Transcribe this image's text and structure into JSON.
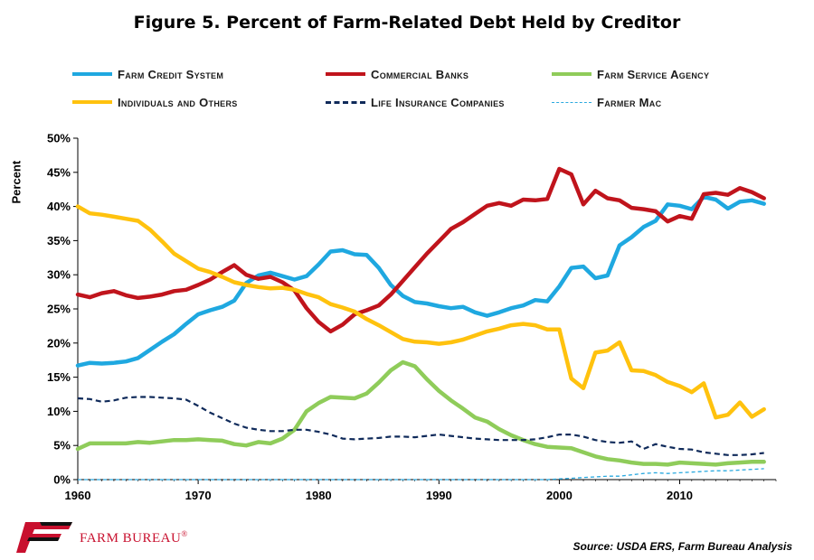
{
  "title": "Figure 5. Percent of Farm-Related Debt Held by Creditor",
  "source": "Source: USDA ERS, Farm Bureau Analysis",
  "brand": {
    "name": "FARM BUREAU",
    "mark": "FB",
    "registered": "®"
  },
  "chart_data": {
    "type": "line",
    "xlim": [
      1960,
      2018
    ],
    "ylim": [
      0,
      50
    ],
    "ylabel": "Percent",
    "xticks": [
      1960,
      1970,
      1980,
      1990,
      2000,
      2010
    ],
    "yticks": [
      "0%",
      "5%",
      "10%",
      "15%",
      "20%",
      "25%",
      "30%",
      "35%",
      "40%",
      "45%",
      "50%"
    ],
    "grid": false,
    "legend_position": "top",
    "x": [
      1960,
      1961,
      1962,
      1963,
      1964,
      1965,
      1966,
      1967,
      1968,
      1969,
      1970,
      1971,
      1972,
      1973,
      1974,
      1975,
      1976,
      1977,
      1978,
      1979,
      1980,
      1981,
      1982,
      1983,
      1984,
      1985,
      1986,
      1987,
      1988,
      1989,
      1990,
      1991,
      1992,
      1993,
      1994,
      1995,
      1996,
      1997,
      1998,
      1999,
      2000,
      2001,
      2002,
      2003,
      2004,
      2005,
      2006,
      2007,
      2008,
      2009,
      2010,
      2011,
      2012,
      2013,
      2014,
      2015,
      2016,
      2017
    ],
    "series": [
      {
        "name": "Farm Credit System",
        "color": "#1fa8e0",
        "style": "solid",
        "values": [
          16.7,
          17.1,
          17.0,
          17.1,
          17.3,
          17.8,
          19.0,
          20.2,
          21.3,
          22.8,
          24.2,
          24.8,
          25.3,
          26.2,
          28.8,
          29.9,
          30.3,
          29.8,
          29.3,
          29.8,
          31.5,
          33.4,
          33.6,
          33.0,
          32.9,
          31.0,
          28.5,
          26.9,
          26.0,
          25.8,
          25.4,
          25.1,
          25.3,
          24.5,
          24.0,
          24.5,
          25.1,
          25.5,
          26.3,
          26.1,
          28.3,
          31.0,
          31.2,
          29.5,
          29.9,
          34.3,
          35.5,
          37.0,
          37.9,
          40.3,
          40.1,
          39.6,
          41.4,
          41.0,
          39.7,
          40.7,
          40.9,
          40.4
        ]
      },
      {
        "name": "Commercial Banks",
        "color": "#c0141c",
        "style": "solid",
        "values": [
          27.1,
          26.7,
          27.3,
          27.6,
          27.0,
          26.6,
          26.8,
          27.1,
          27.6,
          27.8,
          28.5,
          29.3,
          30.4,
          31.4,
          30.0,
          29.4,
          29.7,
          28.9,
          27.7,
          25.1,
          23.1,
          21.7,
          22.7,
          24.2,
          24.8,
          25.5,
          27.1,
          29.1,
          31.1,
          33.1,
          34.9,
          36.7,
          37.7,
          38.9,
          40.1,
          40.5,
          40.1,
          41.0,
          40.9,
          41.1,
          45.5,
          44.7,
          40.3,
          42.3,
          41.2,
          40.9,
          39.8,
          39.6,
          39.3,
          37.8,
          38.6,
          38.2,
          41.8,
          42.0,
          41.7,
          42.7,
          42.1,
          41.2
        ]
      },
      {
        "name": "Farm Service Agency",
        "color": "#8fcc5a",
        "style": "solid",
        "values": [
          4.5,
          5.3,
          5.3,
          5.3,
          5.3,
          5.5,
          5.4,
          5.6,
          5.8,
          5.8,
          5.9,
          5.8,
          5.7,
          5.2,
          5.0,
          5.5,
          5.3,
          6.0,
          7.3,
          10.0,
          11.2,
          12.1,
          12.0,
          11.9,
          12.6,
          14.2,
          16.0,
          17.2,
          16.6,
          14.7,
          13.0,
          11.6,
          10.4,
          9.1,
          8.5,
          7.4,
          6.5,
          5.8,
          5.2,
          4.8,
          4.7,
          4.6,
          4.0,
          3.4,
          3.0,
          2.8,
          2.5,
          2.3,
          2.3,
          2.2,
          2.5,
          2.4,
          2.3,
          2.2,
          2.4,
          2.5,
          2.6,
          2.6
        ]
      },
      {
        "name": "Individuals and Others",
        "color": "#ffc20e",
        "style": "solid",
        "values": [
          40.0,
          39.0,
          38.8,
          38.5,
          38.2,
          37.9,
          36.6,
          34.9,
          33.1,
          32.0,
          30.9,
          30.4,
          29.7,
          28.9,
          28.5,
          28.2,
          28.0,
          28.1,
          27.8,
          27.2,
          26.7,
          25.7,
          25.2,
          24.6,
          23.5,
          22.6,
          21.6,
          20.6,
          20.2,
          20.1,
          19.9,
          20.1,
          20.5,
          21.1,
          21.7,
          22.1,
          22.6,
          22.8,
          22.6,
          22.0,
          22.0,
          14.8,
          13.4,
          18.6,
          18.9,
          20.1,
          16.0,
          15.9,
          15.3,
          14.3,
          13.7,
          12.8,
          14.1,
          9.1,
          9.5,
          11.3,
          9.2,
          10.3
        ]
      },
      {
        "name": "Life Insurance Companies",
        "color": "#0f2a5a",
        "style": "dashed",
        "values": [
          11.9,
          11.8,
          11.4,
          11.6,
          12.0,
          12.1,
          12.1,
          12.0,
          11.9,
          11.7,
          10.8,
          9.8,
          9.0,
          8.2,
          7.6,
          7.3,
          7.1,
          7.1,
          7.3,
          7.3,
          7.0,
          6.6,
          6.0,
          5.9,
          6.0,
          6.1,
          6.3,
          6.3,
          6.2,
          6.4,
          6.6,
          6.4,
          6.2,
          6.0,
          5.9,
          5.8,
          5.8,
          5.8,
          5.9,
          6.2,
          6.6,
          6.6,
          6.3,
          5.8,
          5.5,
          5.4,
          5.6,
          4.5,
          5.2,
          4.8,
          4.5,
          4.4,
          4.0,
          3.8,
          3.6,
          3.6,
          3.7,
          3.9
        ]
      },
      {
        "name": "Farmer Mac",
        "color": "#2aa9df",
        "style": "dashed-thin",
        "values": [
          0,
          0,
          0,
          0,
          0,
          0,
          0,
          0,
          0,
          0,
          0,
          0,
          0,
          0,
          0,
          0,
          0,
          0,
          0,
          0,
          0,
          0,
          0,
          0,
          0,
          0,
          0,
          0,
          0,
          0,
          0,
          0,
          0,
          0,
          0,
          0,
          0,
          0,
          0,
          0,
          0.1,
          0.2,
          0.3,
          0.4,
          0.5,
          0.5,
          0.7,
          0.9,
          1.0,
          0.9,
          1.0,
          1.1,
          1.2,
          1.3,
          1.3,
          1.4,
          1.5,
          1.6
        ]
      }
    ]
  }
}
